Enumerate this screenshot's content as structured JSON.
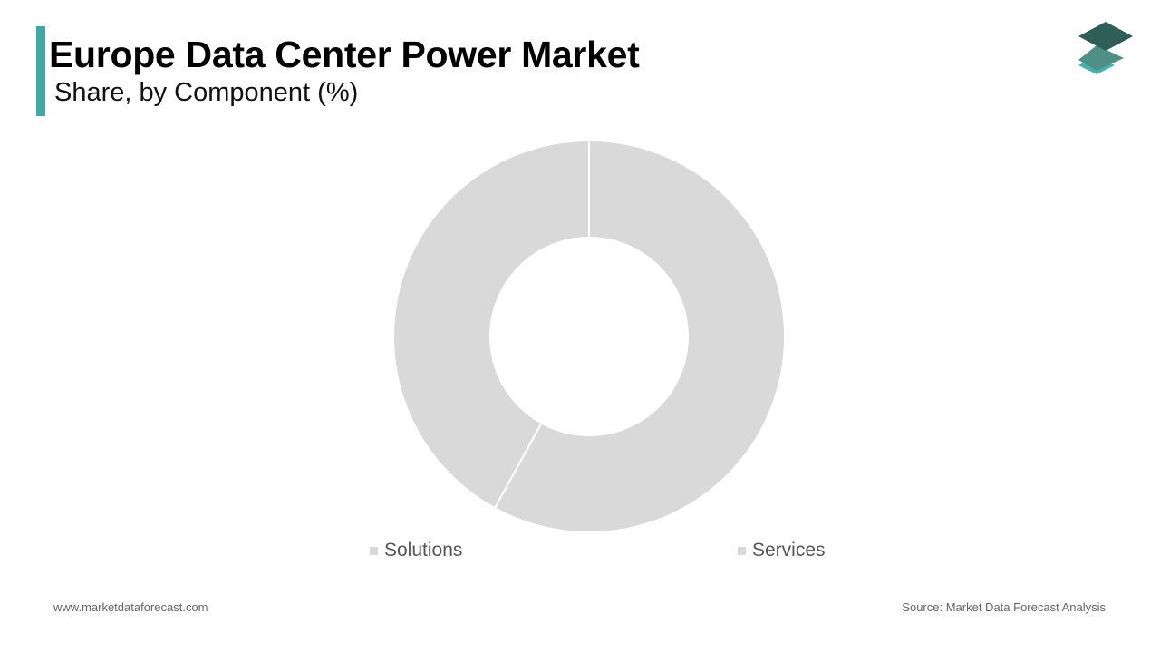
{
  "header": {
    "title": "Europe Data Center Power Market",
    "subtitle": "Share, by Component (%)"
  },
  "colors": {
    "accent": "#3fa9a6",
    "slice": "#d9d9d9",
    "slice_border": "#ffffff",
    "logo_dark": "#2e5e57",
    "logo_mid": "#4f8f86",
    "logo_light": "#43b3ad"
  },
  "logo": {
    "icon": "stacked-layers-icon"
  },
  "chart_data": {
    "type": "pie",
    "categories": [
      "Solutions",
      "Services"
    ],
    "values": [
      58,
      42
    ],
    "legend": "bottom"
  },
  "legend": {
    "items": [
      {
        "label": "Solutions",
        "color": "#d9d9d9"
      },
      {
        "label": "Services",
        "color": "#d9d9d9"
      }
    ]
  },
  "footer": {
    "website": "www.marketdataforecast.com",
    "source": "Source: Market Data Forecast Analysis"
  }
}
